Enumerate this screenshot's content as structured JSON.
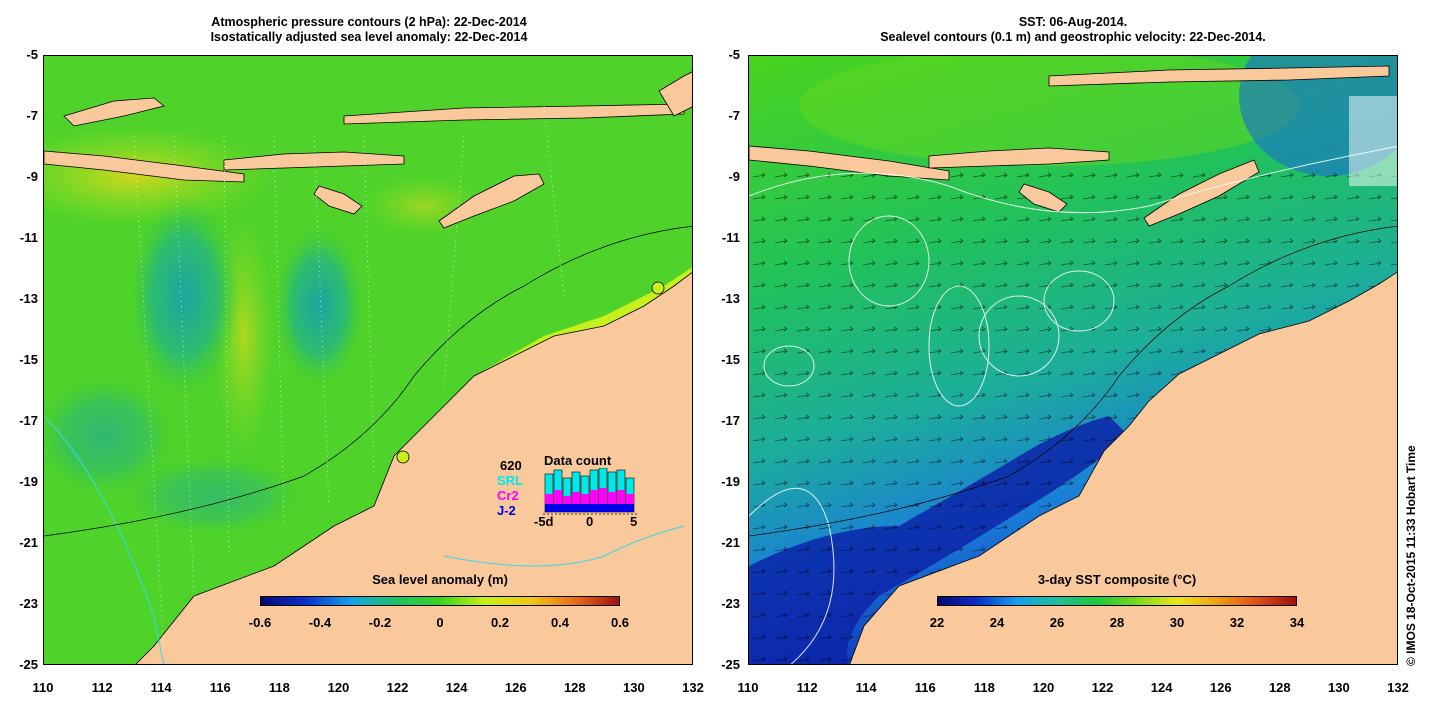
{
  "left_panel": {
    "title_line1": "Atmospheric pressure contours (2 hPa): 22-Dec-2014",
    "title_line2": "Isostatically adjusted sea level anomaly: 22-Dec-2014",
    "colorbar": {
      "title": "Sea level anomaly (m)",
      "ticks": [
        "-0.6",
        "-0.4",
        "-0.2",
        "0",
        "0.2",
        "0.4",
        "0.6"
      ],
      "colors": [
        "#08086e",
        "#0a2fd0",
        "#12a4e8",
        "#1fbf6a",
        "#3ad41e",
        "#c8f01a",
        "#f0c818",
        "#e8701a",
        "#a01010"
      ]
    },
    "data_count": {
      "title": "Data count",
      "count": "620",
      "missions": [
        {
          "label": "SRL",
          "color": "#00e8e8"
        },
        {
          "label": "Cr2",
          "color": "#ff00ff"
        },
        {
          "label": "J-2",
          "color": "#0000e8"
        }
      ],
      "axis_ticks": [
        "-5d",
        "0",
        "5"
      ]
    }
  },
  "right_panel": {
    "title_line1": "SST: 06-Aug-2014.",
    "title_line2": "Sealevel contours (0.1 m) and geostrophic velocity: 22-Dec-2014.",
    "colorbar": {
      "title": "3-day SST composite (°C)",
      "ticks": [
        "22",
        "24",
        "26",
        "28",
        "30",
        "32",
        "34"
      ],
      "colors": [
        "#08086e",
        "#0a2fd0",
        "#12a4e8",
        "#1fbf9a",
        "#1ec83a",
        "#7ad81e",
        "#e8e81a",
        "#f0a018",
        "#e05018",
        "#a01010"
      ]
    }
  },
  "axes": {
    "y_ticks": [
      "-5",
      "-7",
      "-9",
      "-11",
      "-13",
      "-15",
      "-17",
      "-19",
      "-21",
      "-23",
      "-25"
    ],
    "x_ticks": [
      "110",
      "112",
      "114",
      "116",
      "118",
      "120",
      "122",
      "124",
      "126",
      "128",
      "130",
      "132"
    ]
  },
  "colors": {
    "land": "#f9c89b",
    "ocean_left": "#4fd22a",
    "ocean_right": "#21c25a"
  },
  "credit": "© IMOS 18-Oct-2015 11:33 Hobart Time"
}
